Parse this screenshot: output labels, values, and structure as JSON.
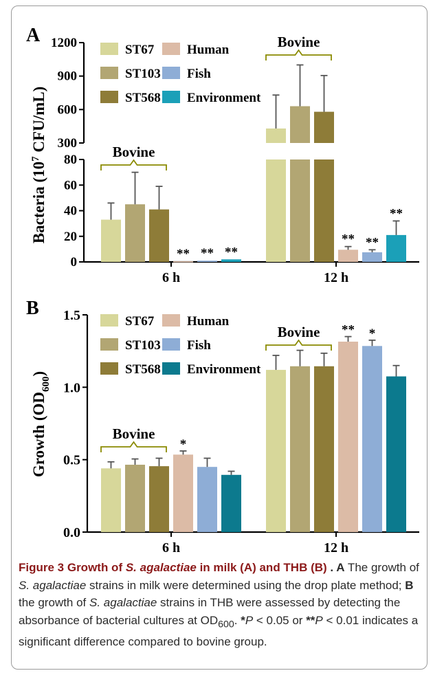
{
  "panel_a": {
    "label": "A",
    "ylabel_main": "Bacteria (10",
    "ylabel_sup": "7",
    "ylabel_unit": " CFU/mL)"
  },
  "panel_b": {
    "label": "B",
    "ylabel_main": "Growth (OD",
    "ylabel_sub": "600",
    "ylabel_close": ")"
  },
  "colors": {
    "ST67": "#d7d79a",
    "ST103": "#b2a673",
    "ST568": "#8e7c38",
    "Human": "#dcbba6",
    "Fish": "#8eadd6",
    "Environment_A": "#1ba0b8",
    "Environment_B": "#0c7a8e",
    "bracket": "#8a8a00"
  },
  "chart_data": [
    {
      "type": "bar",
      "panel": "A",
      "categories": [
        "6 h",
        "12 h"
      ],
      "y_broken": true,
      "y_lower_range": [
        0,
        80
      ],
      "y_upper_range": [
        300,
        1200
      ],
      "yticks_lower": [
        "0",
        "20",
        "40",
        "60",
        "80"
      ],
      "yticks_upper": [
        "300",
        "600",
        "900",
        "1200"
      ],
      "legend": [
        "ST67",
        "ST103",
        "ST568",
        "Human",
        "Fish",
        "Environment"
      ],
      "group_label": "Bovine",
      "series": [
        {
          "name": "ST67",
          "values": [
            33,
            430
          ],
          "errors": [
            13,
            300
          ]
        },
        {
          "name": "ST103",
          "values": [
            45,
            630
          ],
          "errors": [
            25,
            370
          ]
        },
        {
          "name": "ST568",
          "values": [
            41,
            580
          ],
          "errors": [
            18,
            325
          ]
        },
        {
          "name": "Human",
          "values": [
            0.5,
            9.5
          ],
          "errors": [
            0,
            2.5
          ]
        },
        {
          "name": "Fish",
          "values": [
            1,
            7.5
          ],
          "errors": [
            0,
            2
          ]
        },
        {
          "name": "Environment",
          "values": [
            2,
            21
          ],
          "errors": [
            0,
            11
          ]
        }
      ],
      "significance": [
        {
          "series": "Human",
          "labels": [
            "**",
            "**"
          ]
        },
        {
          "series": "Fish",
          "labels": [
            "**",
            "**"
          ]
        },
        {
          "series": "Environment",
          "labels": [
            "**",
            "**"
          ]
        }
      ]
    },
    {
      "type": "bar",
      "panel": "B",
      "categories": [
        "6 h",
        "12 h"
      ],
      "ylim": [
        0,
        1.5
      ],
      "yticks": [
        "0.0",
        "0.5",
        "1.0",
        "1.5"
      ],
      "legend": [
        "ST67",
        "ST103",
        "ST568",
        "Human",
        "Fish",
        "Environment"
      ],
      "group_label": "Bovine",
      "series": [
        {
          "name": "ST67",
          "values": [
            0.44,
            1.12
          ],
          "errors": [
            0.045,
            0.1
          ]
        },
        {
          "name": "ST103",
          "values": [
            0.465,
            1.145
          ],
          "errors": [
            0.04,
            0.11
          ]
        },
        {
          "name": "ST568",
          "values": [
            0.455,
            1.145
          ],
          "errors": [
            0.055,
            0.09
          ]
        },
        {
          "name": "Human",
          "values": [
            0.535,
            1.315
          ],
          "errors": [
            0.025,
            0.035
          ]
        },
        {
          "name": "Fish",
          "values": [
            0.45,
            1.285
          ],
          "errors": [
            0.06,
            0.04
          ]
        },
        {
          "name": "Environment",
          "values": [
            0.395,
            1.075
          ],
          "errors": [
            0.025,
            0.075
          ]
        }
      ],
      "significance": [
        {
          "series": "Human",
          "labels": [
            "*",
            "**"
          ]
        },
        {
          "series": "Fish",
          "labels": [
            "",
            "*"
          ]
        }
      ]
    }
  ],
  "caption": {
    "title_1": "Figure 3  Growth of ",
    "title_italic": "S. agalactiae",
    "title_2": " in milk (A) and THB (B)",
    "label_a": ". A",
    "text_1": " The growth of ",
    "italic_1": "S. agalactiae",
    "text_2": " strains in milk were determined using the drop plate method; ",
    "label_b": "B",
    "text_3": " the growth of ",
    "italic_2": "S. agalactiae",
    "text_4": " strains in THB were assessed by detecting the absorbance of bacterial cultures at OD",
    "od_sub": "600",
    "text_5": ". ",
    "star_1": "*",
    "p_1": "P",
    "text_6": " < 0.05 or ",
    "star_2": "**",
    "p_2": "P",
    "text_7": " < 0.01 indicates a significant difference compared to bovine group."
  }
}
